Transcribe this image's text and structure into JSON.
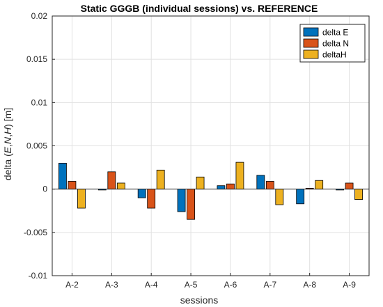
{
  "chart_data": {
    "type": "bar",
    "title": "Static GGGB (individual sessions) vs. REFERENCE",
    "xlabel": "sessions",
    "ylabel_parts": [
      "delta (",
      "E",
      ",",
      "N",
      ",",
      "H",
      ") [m]"
    ],
    "categories": [
      "A-2",
      "A-3",
      "A-4",
      "A-5",
      "A-6",
      "A-7",
      "A-8",
      "A-9"
    ],
    "ylim": [
      -0.01,
      0.02
    ],
    "yticks": [
      -0.01,
      -0.005,
      0,
      0.005,
      0.01,
      0.015,
      0.02
    ],
    "ytick_labels": [
      "-0.01",
      "-0.005",
      "0",
      "0.005",
      "0.01",
      "0.015",
      "0.02"
    ],
    "grid": true,
    "legend_position": "top-right",
    "series": [
      {
        "name": "delta E",
        "color": "#0072BD",
        "values": [
          0.003,
          -0.0001,
          -0.001,
          -0.0026,
          0.0004,
          0.0016,
          -0.0017,
          -0.0001
        ]
      },
      {
        "name": "delta N",
        "color": "#D95319",
        "values": [
          0.0009,
          0.002,
          -0.0022,
          -0.0035,
          0.0006,
          0.0009,
          0.0001,
          0.0007
        ]
      },
      {
        "name": "deltaH",
        "color": "#EDB120",
        "values": [
          -0.0022,
          0.0007,
          0.0022,
          0.0014,
          0.0031,
          -0.0018,
          0.001,
          -0.0012
        ]
      }
    ]
  }
}
